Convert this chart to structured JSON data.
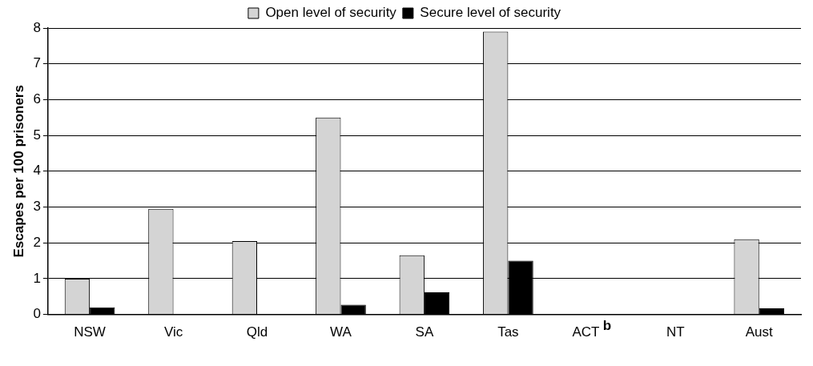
{
  "chart_data": {
    "type": "bar",
    "ylabel": "Escapes per 100 prisoners",
    "categories": [
      "NSW",
      "Vic",
      "Qld",
      "WA",
      "SA",
      "Tas",
      "ACT $^{b}$",
      "NT",
      "Aust"
    ],
    "series": [
      {
        "name": "Open level of security",
        "color": "#d4d4d4",
        "values": [
          1.0,
          2.95,
          2.05,
          5.5,
          1.65,
          7.9,
          0,
          0,
          2.1
        ]
      },
      {
        "name": "Secure level of security",
        "color": "#000000",
        "values": [
          0.2,
          0,
          0,
          0.27,
          0.62,
          1.5,
          0,
          0,
          0.17
        ]
      }
    ],
    "ylim": [
      0,
      8
    ],
    "yticks": [
      0,
      1,
      2,
      3,
      4,
      5,
      6,
      7,
      8
    ],
    "grid": "y",
    "legend": "top"
  }
}
